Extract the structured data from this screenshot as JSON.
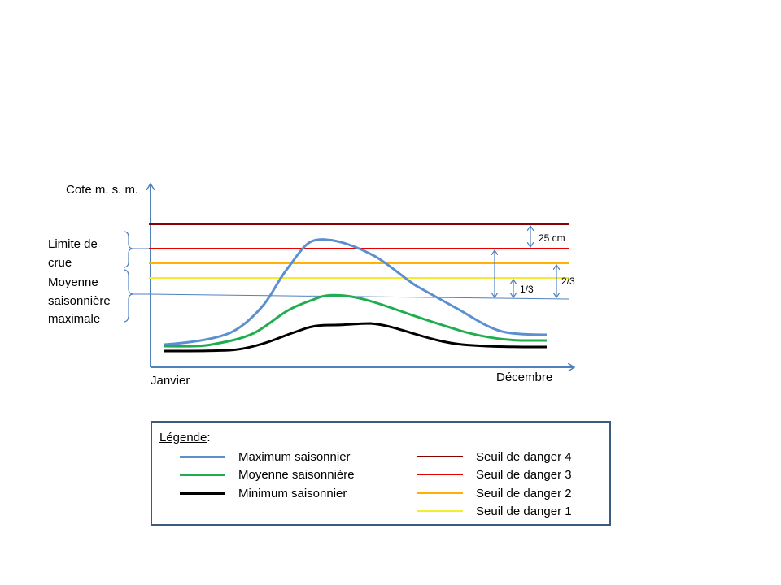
{
  "diagram": {
    "y_axis_label": "Cote m. s. m.",
    "x_start_label": "Janvier",
    "x_end_label": "Décembre",
    "bracket_labels": {
      "limite_crue": [
        "Limite de",
        "crue"
      ],
      "moyenne_max": [
        "Moyenne",
        "saisonnière",
        "maximale"
      ]
    },
    "annotations": {
      "gap_25cm": "25 cm",
      "one_third": "1/3",
      "two_thirds": "2/3"
    },
    "colors": {
      "axis": "#4f81bd",
      "maximum": "#5b8fd0",
      "moyenne": "#1fad4f",
      "minimum": "#000000",
      "seuil_4": "#8b0000",
      "seuil_3": "#e60000",
      "seuil_2": "#ffb000",
      "seuil_1": "#f4ec30",
      "reference_line": "#4f81bd"
    }
  },
  "legend": {
    "title": "Légende",
    "title_suffix": ":",
    "curves": [
      {
        "label": "Maximum saisonnier",
        "color": "#5b8fd0"
      },
      {
        "label": "Moyenne saisonnière",
        "color": "#1fad4f"
      },
      {
        "label": "Minimum saisonnier",
        "color": "#000000"
      }
    ],
    "thresholds": [
      {
        "label": "Seuil de danger 4",
        "color": "#8b0000"
      },
      {
        "label": "Seuil de danger 3",
        "color": "#e60000"
      },
      {
        "label": "Seuil de danger 2",
        "color": "#ffb000"
      },
      {
        "label": "Seuil de danger 1",
        "color": "#f4ec30"
      }
    ]
  }
}
